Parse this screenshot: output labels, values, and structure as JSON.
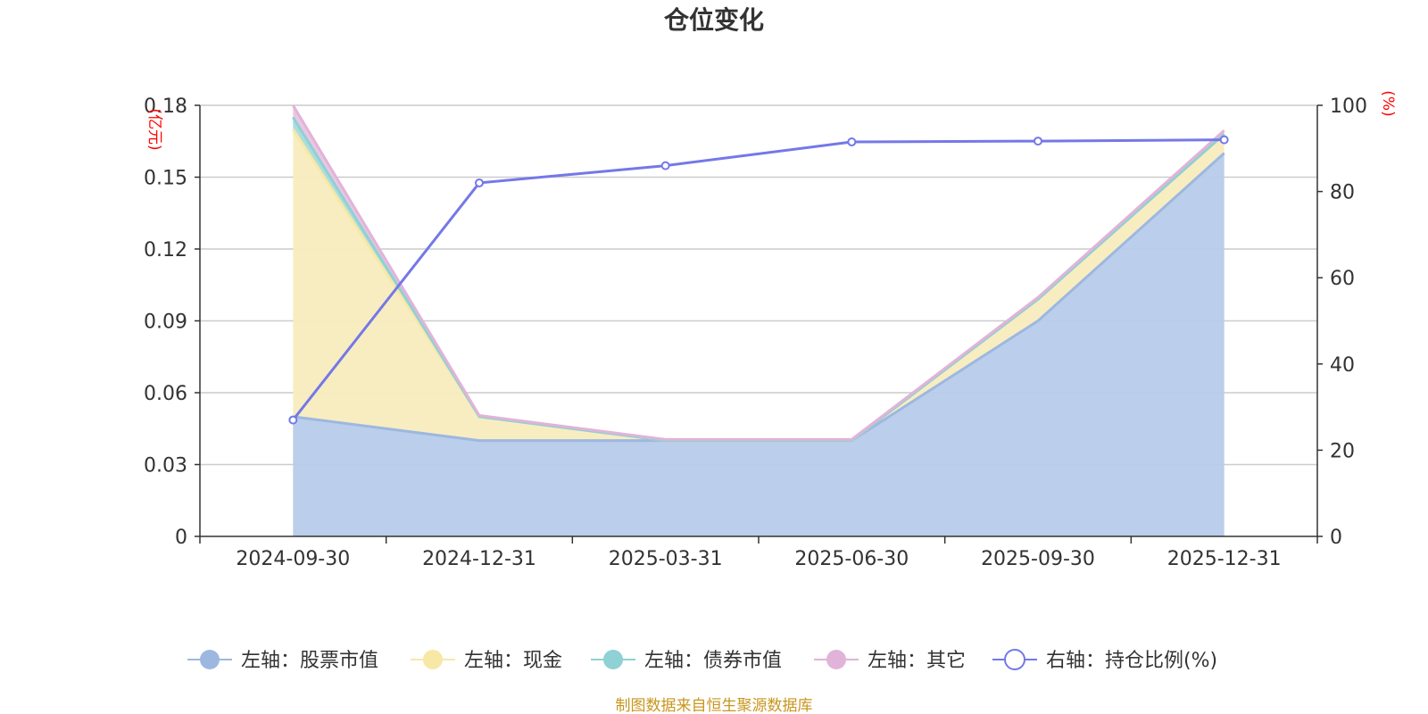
{
  "chart_data": {
    "type": "area",
    "title": "仓位变化",
    "categories": [
      "2024-09-30",
      "2024-12-31",
      "2025-03-31",
      "2025-06-30",
      "2025-09-30",
      "2025-12-31"
    ],
    "left_axis": {
      "unit": "(亿元)",
      "ylim": [
        0,
        0.18
      ],
      "ticks": [
        "0",
        "0.03",
        "0.06",
        "0.09",
        "0.12",
        "0.15",
        "0.18"
      ]
    },
    "right_axis": {
      "unit": "(%)",
      "ylim": [
        0,
        100
      ],
      "ticks": [
        "0",
        "20",
        "40",
        "60",
        "80",
        "100"
      ]
    },
    "stacked_series": [
      {
        "name": "左轴：股票市值",
        "values": [
          0.05,
          0.04,
          0.04,
          0.04,
          0.09,
          0.16
        ],
        "color": "#9db8e0",
        "fill": "#b7cbea"
      },
      {
        "name": "左轴：现金",
        "values": [
          0.12,
          0.01,
          0.0,
          0.0,
          0.009,
          0.008
        ],
        "color": "#f7e8a6",
        "fill": "#f8ecbe"
      },
      {
        "name": "左轴：债券市值",
        "values": [
          0.005,
          0.0,
          0.0,
          0.0,
          0.0,
          0.0
        ],
        "color": "#8fd1d4",
        "fill": "#a8dadc"
      },
      {
        "name": "左轴：其它",
        "values": [
          0.005,
          0.0005,
          0.0005,
          0.0005,
          0.0008,
          0.0015
        ],
        "color": "#e2b3d8",
        "fill": "#e9c3e1"
      }
    ],
    "line_series": {
      "name": "右轴：持仓比例(%)",
      "axis": "right",
      "values": [
        27,
        82,
        86,
        91.5,
        91.7,
        92
      ],
      "color": "#7478e8"
    },
    "legend_position": "bottom",
    "grid": true
  },
  "footer": {
    "source": "制图数据来自恒生聚源数据库"
  }
}
